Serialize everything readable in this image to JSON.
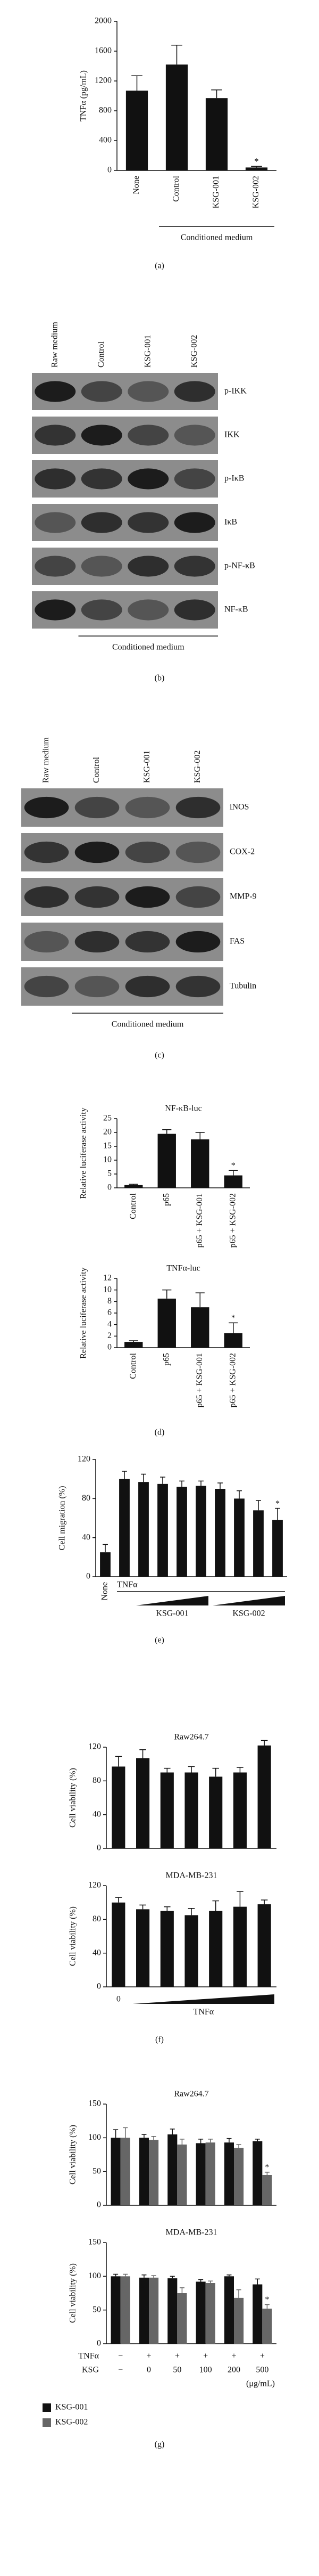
{
  "chart_data": [
    {
      "type": "bar",
      "ylabel": "TNFα (pg/mL)",
      "categories": [
        "None",
        "Control",
        "KSG-001",
        "KSG-002"
      ],
      "values": [
        1070,
        1420,
        970,
        40
      ],
      "errors": [
        200,
        260,
        110,
        15
      ],
      "annotations": [
        null,
        null,
        null,
        "*"
      ],
      "color": "#111111",
      "ylim": [
        0,
        2000
      ],
      "yticks": [
        0,
        400,
        800,
        1200,
        1600,
        2000
      ],
      "xlabel": "Conditioned medium",
      "panel_label": "(a)"
    },
    {
      "type": "bar",
      "title": "NF-κB-luc",
      "ylabel": "Relative luciferase activity",
      "categories": [
        "Control",
        "p65",
        "p65 + KSG-001",
        "p65 + KSG-002"
      ],
      "values": [
        1,
        19.5,
        17.5,
        4.5
      ],
      "errors": [
        0.3,
        1.5,
        2.5,
        1.8
      ],
      "annotations": [
        null,
        null,
        null,
        "*"
      ],
      "color": "#111111",
      "ylim": [
        0,
        25
      ],
      "yticks": [
        0,
        5,
        10,
        15,
        20,
        25
      ]
    },
    {
      "type": "bar",
      "title": "TNFα-luc",
      "ylabel": "Relative luciferase activity",
      "categories": [
        "Control",
        "p65",
        "p65 + KSG-001",
        "p65 + KSG-002"
      ],
      "values": [
        1,
        8.5,
        7,
        2.5
      ],
      "errors": [
        0.2,
        1.5,
        2.5,
        1.8
      ],
      "annotations": [
        null,
        null,
        null,
        "*"
      ],
      "color": "#111111",
      "ylim": [
        0,
        12
      ],
      "yticks": [
        0,
        2,
        4,
        6,
        8,
        10,
        12
      ],
      "panel_label": "(d)"
    },
    {
      "type": "bar",
      "ylabel": "Cell migration (%)",
      "categories": [
        "None",
        null,
        null,
        null,
        null,
        null,
        null,
        null,
        null,
        null
      ],
      "values": [
        25,
        100,
        97,
        95,
        92,
        93,
        90,
        80,
        68,
        58
      ],
      "errors": [
        8,
        8,
        8,
        7,
        6,
        5,
        6,
        8,
        10,
        12
      ],
      "annotations": [
        null,
        null,
        null,
        null,
        null,
        null,
        null,
        null,
        null,
        "*"
      ],
      "color": "#111111",
      "ylim": [
        0,
        120
      ],
      "yticks": [
        0,
        40,
        80,
        120
      ],
      "x_groups": [
        "TNFα",
        "KSG-001",
        "KSG-002"
      ],
      "panel_label": "(e)"
    },
    {
      "type": "bar",
      "title": "Raw264.7",
      "ylabel": "Cell viability (%)",
      "values": [
        97,
        107,
        90,
        90,
        85,
        90,
        122
      ],
      "errors": [
        12,
        10,
        5,
        7,
        10,
        6,
        6
      ],
      "color": "#111111",
      "ylim": [
        0,
        120
      ],
      "yticks": [
        0,
        40,
        80,
        120
      ]
    },
    {
      "type": "bar",
      "title": "MDA-MB-231",
      "ylabel": "Cell viability (%)",
      "categories": [
        "0",
        null,
        null,
        null,
        null,
        null,
        null
      ],
      "values": [
        100,
        92,
        90,
        85,
        90,
        95,
        98
      ],
      "errors": [
        6,
        5,
        5,
        8,
        12,
        18,
        5
      ],
      "color": "#111111",
      "ylim": [
        0,
        120
      ],
      "yticks": [
        0,
        40,
        80,
        120
      ],
      "x_groups": [
        "TNFα"
      ],
      "panel_label": "(f)"
    },
    {
      "type": "bar",
      "title": "Raw264.7",
      "ylabel": "Cell viability (%)",
      "series": [
        {
          "name": "KSG-001",
          "color": "#111111",
          "values": [
            100,
            100,
            105,
            92,
            93,
            95
          ],
          "errors": [
            12,
            5,
            8,
            6,
            6,
            3
          ]
        },
        {
          "name": "KSG-002",
          "color": "#666666",
          "values": [
            100,
            97,
            90,
            93,
            85,
            45
          ],
          "errors": [
            15,
            5,
            8,
            5,
            5,
            4
          ],
          "annotations": [
            null,
            null,
            null,
            null,
            null,
            "*"
          ]
        }
      ],
      "ylim": [
        0,
        150
      ],
      "yticks": [
        0,
        50,
        100,
        150
      ]
    },
    {
      "type": "bar",
      "title": "MDA-MB-231",
      "ylabel": "Cell viability (%)",
      "series": [
        {
          "name": "KSG-001",
          "color": "#111111",
          "values": [
            100,
            98,
            97,
            92,
            100,
            88
          ],
          "errors": [
            3,
            4,
            3,
            3,
            2,
            8
          ]
        },
        {
          "name": "KSG-002",
          "color": "#666666",
          "values": [
            100,
            98,
            75,
            90,
            68,
            52
          ],
          "errors": [
            3,
            3,
            8,
            3,
            12,
            6
          ],
          "annotations": [
            null,
            null,
            null,
            null,
            null,
            "*"
          ]
        }
      ],
      "ylim": [
        0,
        150
      ],
      "yticks": [
        0,
        50,
        100,
        150
      ],
      "categories": [
        "−",
        "0",
        "50",
        "100",
        "200",
        "500"
      ],
      "category_label": "KSG",
      "category_unit": "(μg/mL)",
      "tnf_row": {
        "label": "TNFα",
        "values": [
          "−",
          "+",
          "+",
          "+",
          "+",
          "+"
        ]
      },
      "panel_label": "(g)"
    }
  ],
  "blots": [
    {
      "lanes": [
        "Raw medium",
        "Control",
        "KSG-001",
        "KSG-002"
      ],
      "bands": [
        "p-IKK",
        "IKK",
        "p-IκB",
        "IκB",
        "p-NF-κB",
        "NF-κB"
      ],
      "xlabel": "Conditioned medium",
      "panel_label": "(b)"
    },
    {
      "lanes": [
        "Raw medium",
        "Control",
        "KSG-001",
        "KSG-002"
      ],
      "bands": [
        "iNOS",
        "COX-2",
        "MMP-9",
        "FAS",
        "Tubulin"
      ],
      "xlabel": "Conditioned medium",
      "panel_label": "(c)"
    }
  ]
}
